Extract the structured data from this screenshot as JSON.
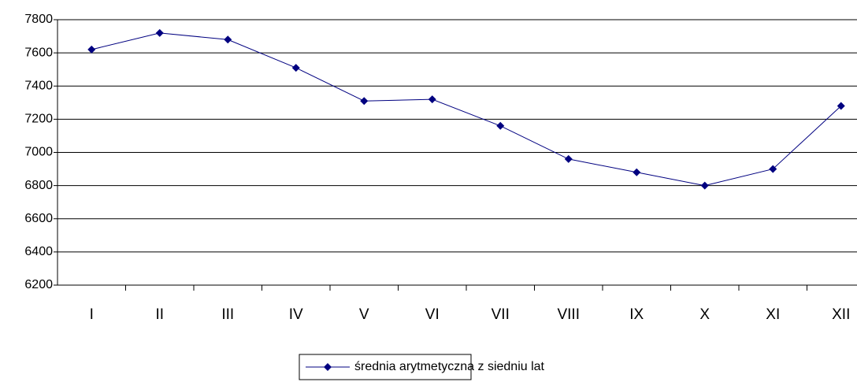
{
  "chart_data": {
    "type": "line",
    "categories": [
      "I",
      "II",
      "III",
      "IV",
      "V",
      "VI",
      "VII",
      "VIII",
      "IX",
      "X",
      "XI",
      "XII"
    ],
    "series": [
      {
        "name": "średnia arytmetyczna z siedniu lat",
        "color": "#000080",
        "values": [
          7620,
          7720,
          7680,
          7510,
          7310,
          7320,
          7160,
          6960,
          6880,
          6800,
          6900,
          7280
        ]
      }
    ],
    "ylim": [
      6200,
      7800
    ],
    "yticks": [
      6200,
      6400,
      6600,
      6800,
      7000,
      7200,
      7400,
      7600,
      7800
    ],
    "grid": true,
    "legend": "bottom"
  }
}
